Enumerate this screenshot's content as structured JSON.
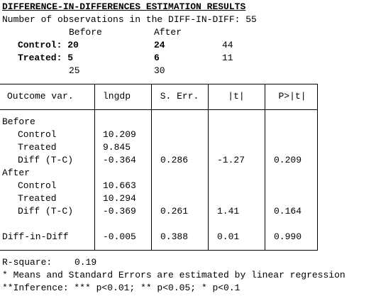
{
  "header": {
    "title": "DIFFERENCE-IN-DIFFERENCES ESTIMATION RESULTS",
    "observations": "Number of observations in the DIFF-IN-DIFF: 55"
  },
  "counts": {
    "columns": [
      "Before",
      "After"
    ],
    "rows": [
      [
        "Control: 20",
        "24",
        "44"
      ],
      [
        "Treated: 5",
        "6",
        "11"
      ]
    ],
    "totals": [
      "25",
      "30"
    ]
  },
  "table": {
    "columns": [
      "Outcome var.",
      "lngdp",
      "S. Err.",
      "|t|",
      "P>|t|"
    ],
    "rows": [
      [
        "Before"
      ],
      [
        "Control",
        "10.209"
      ],
      [
        "Treated",
        "9.845"
      ],
      [
        "Diff (T-C)",
        "-0.364",
        "0.286",
        "-1.27",
        "0.209"
      ],
      [
        "After"
      ],
      [
        "Control",
        "10.663"
      ],
      [
        "Treated",
        "10.294"
      ],
      [
        "Diff (T-C)",
        "-0.369",
        "0.261",
        "1.41",
        "0.164"
      ],
      [
        "Diff-in-Diff",
        "-0.005",
        "0.388",
        "0.01",
        "0.990"
      ]
    ]
  },
  "footer": {
    "r_square_label": "R-square:",
    "r_square": "0.19",
    "notes": [
      "* Means and Standard Errors are estimated by linear regression",
      "**Inference: *** p<0.01; ** p<0.05; * p<0.1"
    ]
  }
}
